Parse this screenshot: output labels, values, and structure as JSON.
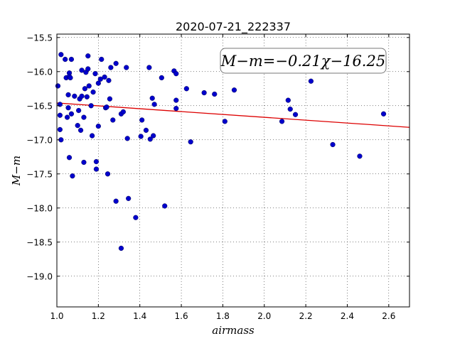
{
  "chart_data": {
    "type": "scatter",
    "title": "2020-07-21_222337",
    "xlabel": "airmass",
    "ylabel": "M−m",
    "xlim": [
      1.0,
      2.7
    ],
    "ylim": [
      -15.45,
      -19.45
    ],
    "y_inverted": true,
    "grid": true,
    "x_ticks": [
      1.0,
      1.2,
      1.4,
      1.6,
      1.8,
      2.0,
      2.2,
      2.4,
      2.6
    ],
    "y_ticks": [
      -15.5,
      -16.0,
      -16.5,
      -17.0,
      -17.5,
      -18.0,
      -18.5,
      -19.0
    ],
    "x_tick_labels": [
      "1.0",
      "1.2",
      "1.4",
      "1.6",
      "1.8",
      "2.0",
      "2.2",
      "2.4",
      "2.6"
    ],
    "y_tick_labels": [
      "−15.5",
      "−16.0",
      "−16.5",
      "−17.0",
      "−17.5",
      "−18.0",
      "−18.5",
      "−19.0"
    ],
    "point_color": "#0000cc",
    "fit_color": "#dd0000",
    "fit": {
      "slope": -0.21,
      "intercept": -16.25
    },
    "fit_label": "M−m=−0.21χ−16.25",
    "points": [
      [
        1.005,
        -16.21
      ],
      [
        1.015,
        -16.48
      ],
      [
        1.015,
        -16.64
      ],
      [
        1.015,
        -16.85
      ],
      [
        1.02,
        -17.0
      ],
      [
        1.02,
        -15.75
      ],
      [
        1.04,
        -15.82
      ],
      [
        1.045,
        -16.09
      ],
      [
        1.05,
        -16.67
      ],
      [
        1.055,
        -16.53
      ],
      [
        1.055,
        -16.34
      ],
      [
        1.06,
        -16.02
      ],
      [
        1.06,
        -16.07
      ],
      [
        1.065,
        -16.09
      ],
      [
        1.06,
        -17.26
      ],
      [
        1.07,
        -15.82
      ],
      [
        1.07,
        -16.62
      ],
      [
        1.075,
        -17.53
      ],
      [
        1.085,
        -16.36
      ],
      [
        1.1,
        -16.79
      ],
      [
        1.105,
        -16.57
      ],
      [
        1.11,
        -16.4
      ],
      [
        1.115,
        -16.86
      ],
      [
        1.12,
        -16.36
      ],
      [
        1.12,
        -15.98
      ],
      [
        1.13,
        -16.67
      ],
      [
        1.13,
        -17.33
      ],
      [
        1.135,
        -16.25
      ],
      [
        1.14,
        -16.01
      ],
      [
        1.145,
        -16.37
      ],
      [
        1.15,
        -15.77
      ],
      [
        1.15,
        -15.96
      ],
      [
        1.155,
        -16.21
      ],
      [
        1.165,
        -16.5
      ],
      [
        1.17,
        -16.94
      ],
      [
        1.175,
        -16.3
      ],
      [
        1.185,
        -16.03
      ],
      [
        1.19,
        -17.43
      ],
      [
        1.19,
        -17.32
      ],
      [
        1.2,
        -16.17
      ],
      [
        1.2,
        -16.8
      ],
      [
        1.21,
        -16.11
      ],
      [
        1.215,
        -15.82
      ],
      [
        1.23,
        -16.08
      ],
      [
        1.235,
        -16.53
      ],
      [
        1.24,
        -16.52
      ],
      [
        1.245,
        -17.5
      ],
      [
        1.25,
        -16.13
      ],
      [
        1.255,
        -16.4
      ],
      [
        1.26,
        -15.94
      ],
      [
        1.27,
        -16.71
      ],
      [
        1.285,
        -17.9
      ],
      [
        1.285,
        -15.88
      ],
      [
        1.31,
        -18.59
      ],
      [
        1.31,
        -16.62
      ],
      [
        1.32,
        -16.59
      ],
      [
        1.335,
        -15.94
      ],
      [
        1.34,
        -16.98
      ],
      [
        1.345,
        -17.86
      ],
      [
        1.38,
        -18.14
      ],
      [
        1.405,
        -16.95
      ],
      [
        1.41,
        -16.71
      ],
      [
        1.43,
        -16.86
      ],
      [
        1.445,
        -15.94
      ],
      [
        1.45,
        -16.99
      ],
      [
        1.46,
        -16.39
      ],
      [
        1.465,
        -16.94
      ],
      [
        1.47,
        -16.48
      ],
      [
        1.505,
        -16.09
      ],
      [
        1.52,
        -17.97
      ],
      [
        1.565,
        -15.99
      ],
      [
        1.575,
        -16.03
      ],
      [
        1.575,
        -16.42
      ],
      [
        1.575,
        -16.54
      ],
      [
        1.625,
        -16.25
      ],
      [
        1.645,
        -17.03
      ],
      [
        1.71,
        -16.31
      ],
      [
        1.76,
        -16.33
      ],
      [
        1.81,
        -16.73
      ],
      [
        1.855,
        -16.27
      ],
      [
        2.085,
        -16.73
      ],
      [
        2.115,
        -16.42
      ],
      [
        2.125,
        -16.55
      ],
      [
        2.15,
        -16.63
      ],
      [
        2.225,
        -16.14
      ],
      [
        2.33,
        -17.07
      ],
      [
        2.46,
        -17.24
      ],
      [
        2.575,
        -16.62
      ]
    ]
  }
}
